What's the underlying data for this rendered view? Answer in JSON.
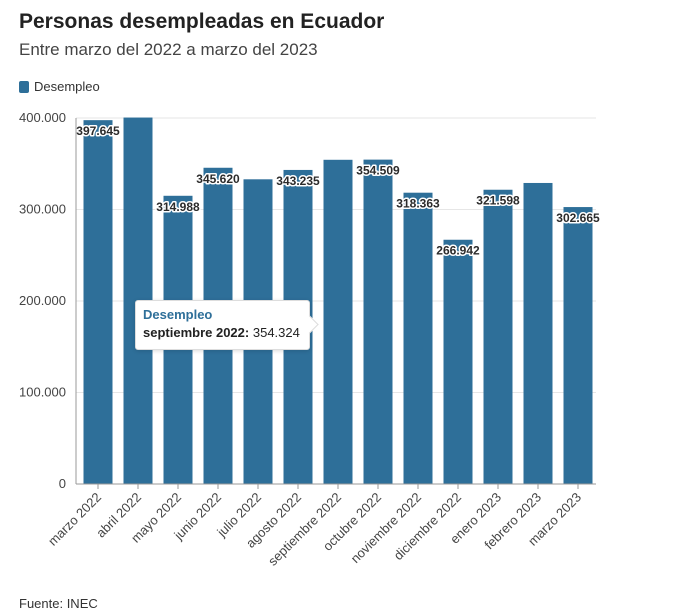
{
  "title": "Personas desempleadas en Ecuador",
  "subtitle": "Entre marzo del 2022 a marzo del 2023",
  "source": "Fuente: INEC",
  "tooltip": {
    "series": "Desempleo",
    "label": "septiembre 2022:",
    "value": "354.324"
  },
  "colors": {
    "bar": "#2e6f99",
    "grid": "#e6e6e6",
    "axis": "#999999"
  },
  "chart_data": {
    "type": "bar",
    "categories": [
      "marzo 2022",
      "abril 2022",
      "mayo 2022",
      "junio 2022",
      "julio 2022",
      "agosto 2022",
      "septiembre 2022",
      "octubre 2022",
      "noviembre 2022",
      "diciembre 2022",
      "enero 2023",
      "febrero 2023",
      "marzo 2023"
    ],
    "series": [
      {
        "name": "Desempleo",
        "values": [
          397645,
          400500,
          314988,
          345620,
          333000,
          343235,
          354324,
          354509,
          318363,
          266942,
          321598,
          329000,
          302665
        ],
        "labels": [
          "397.645",
          "",
          "314.988",
          "345.620",
          "",
          "343.235",
          "",
          "354.509",
          "318.363",
          "266.942",
          "321.598",
          "",
          "302.665"
        ]
      }
    ],
    "ylim": [
      0,
      400000
    ],
    "yticks": [
      0,
      100000,
      200000,
      300000,
      400000
    ],
    "ytick_labels": [
      "0",
      "100.000",
      "200.000",
      "300.000",
      "400.000"
    ],
    "grid": true,
    "legend": "top-left"
  }
}
